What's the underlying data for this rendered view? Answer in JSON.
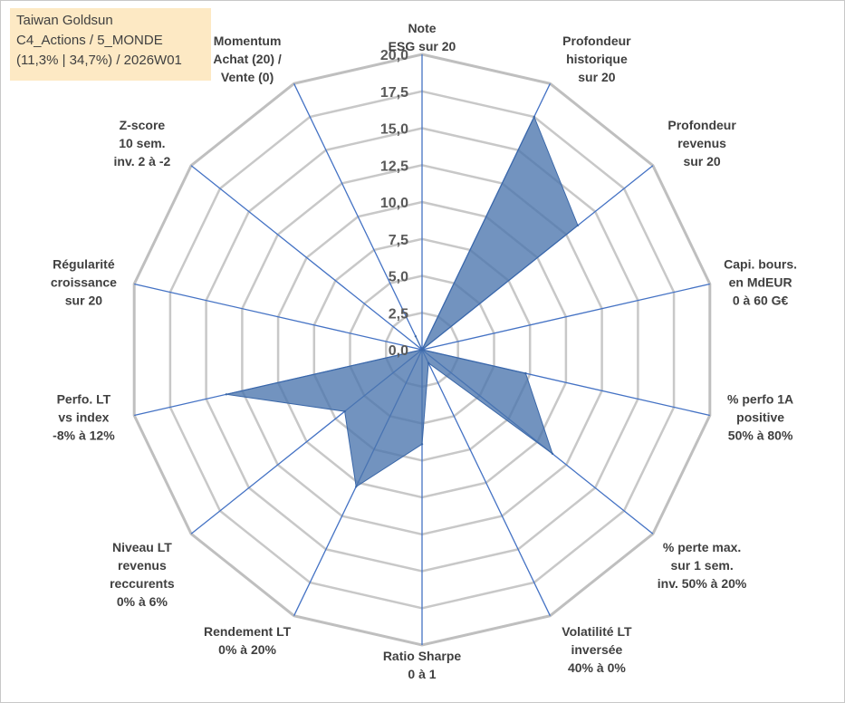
{
  "info": {
    "line1": "Taiwan Goldsun",
    "line2": "C4_Actions / 5_MONDE",
    "line3": "(11,3% | 34,7%) / 2026W01"
  },
  "colors": {
    "fill": "#4a75ad",
    "spoke": "#4472c4",
    "grid": "#c0c0c0",
    "info_bg": "#fde9c4"
  },
  "chart_data": {
    "type": "radar",
    "title": "",
    "rmin": 0,
    "rmax": 20,
    "tick_values": [
      0,
      2.5,
      5,
      7.5,
      10,
      12.5,
      15,
      17.5,
      20
    ],
    "tick_labels": [
      "0,0",
      "2,5",
      "5,0",
      "7,5",
      "10,0",
      "12,5",
      "15,0",
      "17,5",
      "20,0"
    ],
    "axes": [
      {
        "label": [
          "Note",
          "ESG sur 20"
        ],
        "value": 0
      },
      {
        "label": [
          "Profondeur",
          "historique",
          "sur 20"
        ],
        "value": 17.5
      },
      {
        "label": [
          "Profondeur",
          "revenus",
          "sur 20"
        ],
        "value": 13.5
      },
      {
        "label": [
          "Capi. bours.",
          "en MdEUR",
          "0 à 60 G€"
        ],
        "value": 0
      },
      {
        "label": [
          "% perfo 1A",
          "positive",
          "50% à 80%"
        ],
        "value": 7.2
      },
      {
        "label": [
          "% perte max.",
          "sur 1 sem.",
          "inv. 50% à 20%"
        ],
        "value": 11.3
      },
      {
        "label": [
          "Volatilité LT",
          "inversée",
          "40% à 0%"
        ],
        "value": 1.0
      },
      {
        "label": [
          "Ratio Sharpe",
          "0 à 1"
        ],
        "value": 6.4
      },
      {
        "label": [
          "Rendement LT",
          "0% à 20%"
        ],
        "value": 10.3
      },
      {
        "label": [
          "Niveau LT",
          "revenus",
          "reccurents",
          "0% à 6%"
        ],
        "value": 6.7
      },
      {
        "label": [
          "Perfo. LT",
          "vs index",
          "-8% à 12%"
        ],
        "value": 13.6
      },
      {
        "label": [
          "Régularité",
          "croissance",
          "sur 20"
        ],
        "value": 0
      },
      {
        "label": [
          "Z-score",
          "10 sem.",
          "inv. 2 à -2"
        ],
        "value": 0
      },
      {
        "label": [
          "Momentum",
          "Achat (20) /",
          "Vente (0)"
        ],
        "value": 1.0
      }
    ]
  }
}
